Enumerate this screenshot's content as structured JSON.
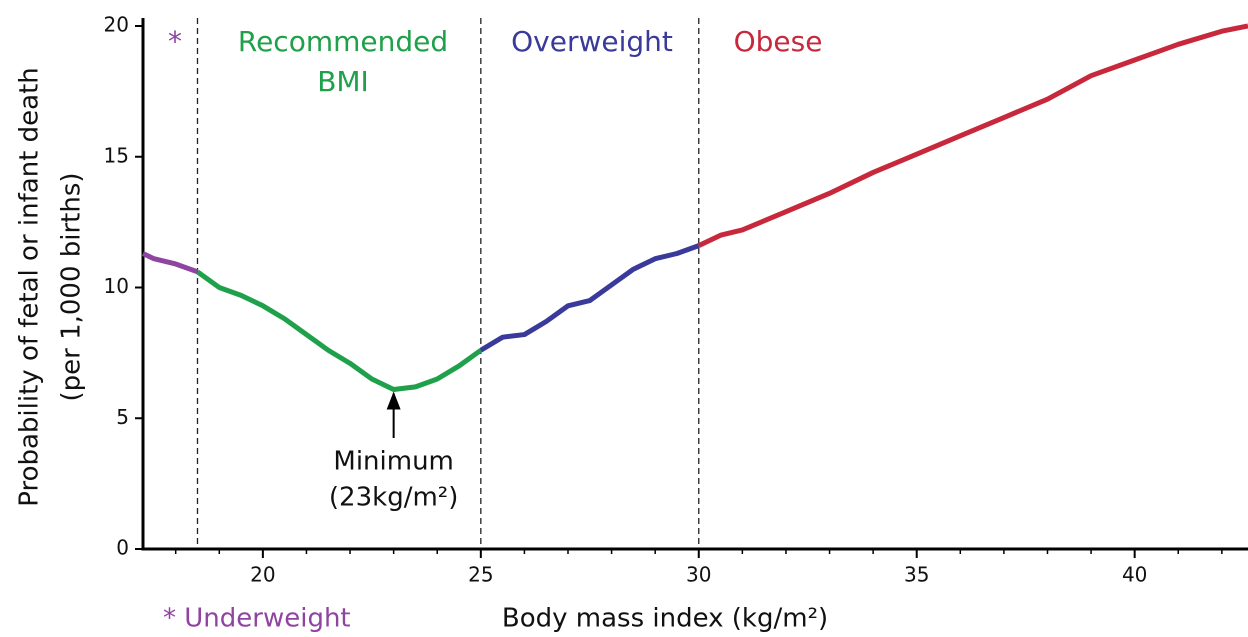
{
  "chart_data": {
    "type": "line",
    "xlabel": "Body mass index (kg/m²)",
    "ylabel": [
      "Probability of fetal or infant death",
      "(per 1,000 births)"
    ],
    "xlim": [
      17.25,
      42.6
    ],
    "ylim": [
      0,
      20
    ],
    "xticks": [
      20,
      25,
      30,
      35,
      40
    ],
    "xminorticks": [
      18,
      19,
      21,
      22,
      23,
      24,
      26,
      27,
      28,
      29,
      31,
      32,
      33,
      34,
      36,
      37,
      38,
      39,
      41,
      42
    ],
    "yticks": [
      0,
      5,
      10,
      15,
      20
    ],
    "thresholds": [
      18.5,
      25,
      30
    ],
    "regions": [
      {
        "label": [
          "*"
        ],
        "color": "#8e44a0"
      },
      {
        "label": [
          "Recommended",
          "BMI"
        ],
        "color": "#1fa04a"
      },
      {
        "label": [
          "Overweight"
        ],
        "color": "#3a3a9a"
      },
      {
        "label": [
          "Obese"
        ],
        "color": "#c8283c"
      }
    ],
    "series": [
      {
        "color": "#8e44a0",
        "x": [
          17.25,
          17.5,
          18,
          18.5
        ],
        "values": [
          11.3,
          11.1,
          10.9,
          10.6
        ]
      },
      {
        "color": "#1fa04a",
        "x": [
          18.5,
          19,
          19.5,
          20,
          20.5,
          21,
          21.5,
          22,
          22.5,
          23,
          23.5,
          24,
          24.5,
          25
        ],
        "values": [
          10.6,
          10.0,
          9.7,
          9.3,
          8.8,
          8.2,
          7.6,
          7.1,
          6.5,
          6.1,
          6.2,
          6.5,
          7.0,
          7.6
        ]
      },
      {
        "color": "#3a3a9a",
        "x": [
          25,
          25.5,
          26,
          26.5,
          27,
          27.5,
          28,
          28.5,
          29,
          29.5,
          30
        ],
        "values": [
          7.6,
          8.1,
          8.2,
          8.7,
          9.3,
          9.5,
          10.1,
          10.7,
          11.1,
          11.3,
          11.6
        ]
      },
      {
        "color": "#c8283c",
        "x": [
          30,
          30.5,
          31,
          32,
          33,
          34,
          35,
          36,
          37,
          38,
          39,
          40,
          41,
          42,
          42.6
        ],
        "values": [
          11.6,
          12.0,
          12.2,
          12.9,
          13.6,
          14.4,
          15.1,
          15.8,
          16.5,
          17.2,
          18.1,
          18.7,
          19.3,
          19.8,
          20.0
        ]
      }
    ],
    "annotation": {
      "text": [
        "Minimum",
        "(23kg/m²)"
      ],
      "x": 23,
      "y": 6.1
    },
    "footnote": {
      "text": "* Underweight",
      "color": "#8e44a0"
    }
  }
}
